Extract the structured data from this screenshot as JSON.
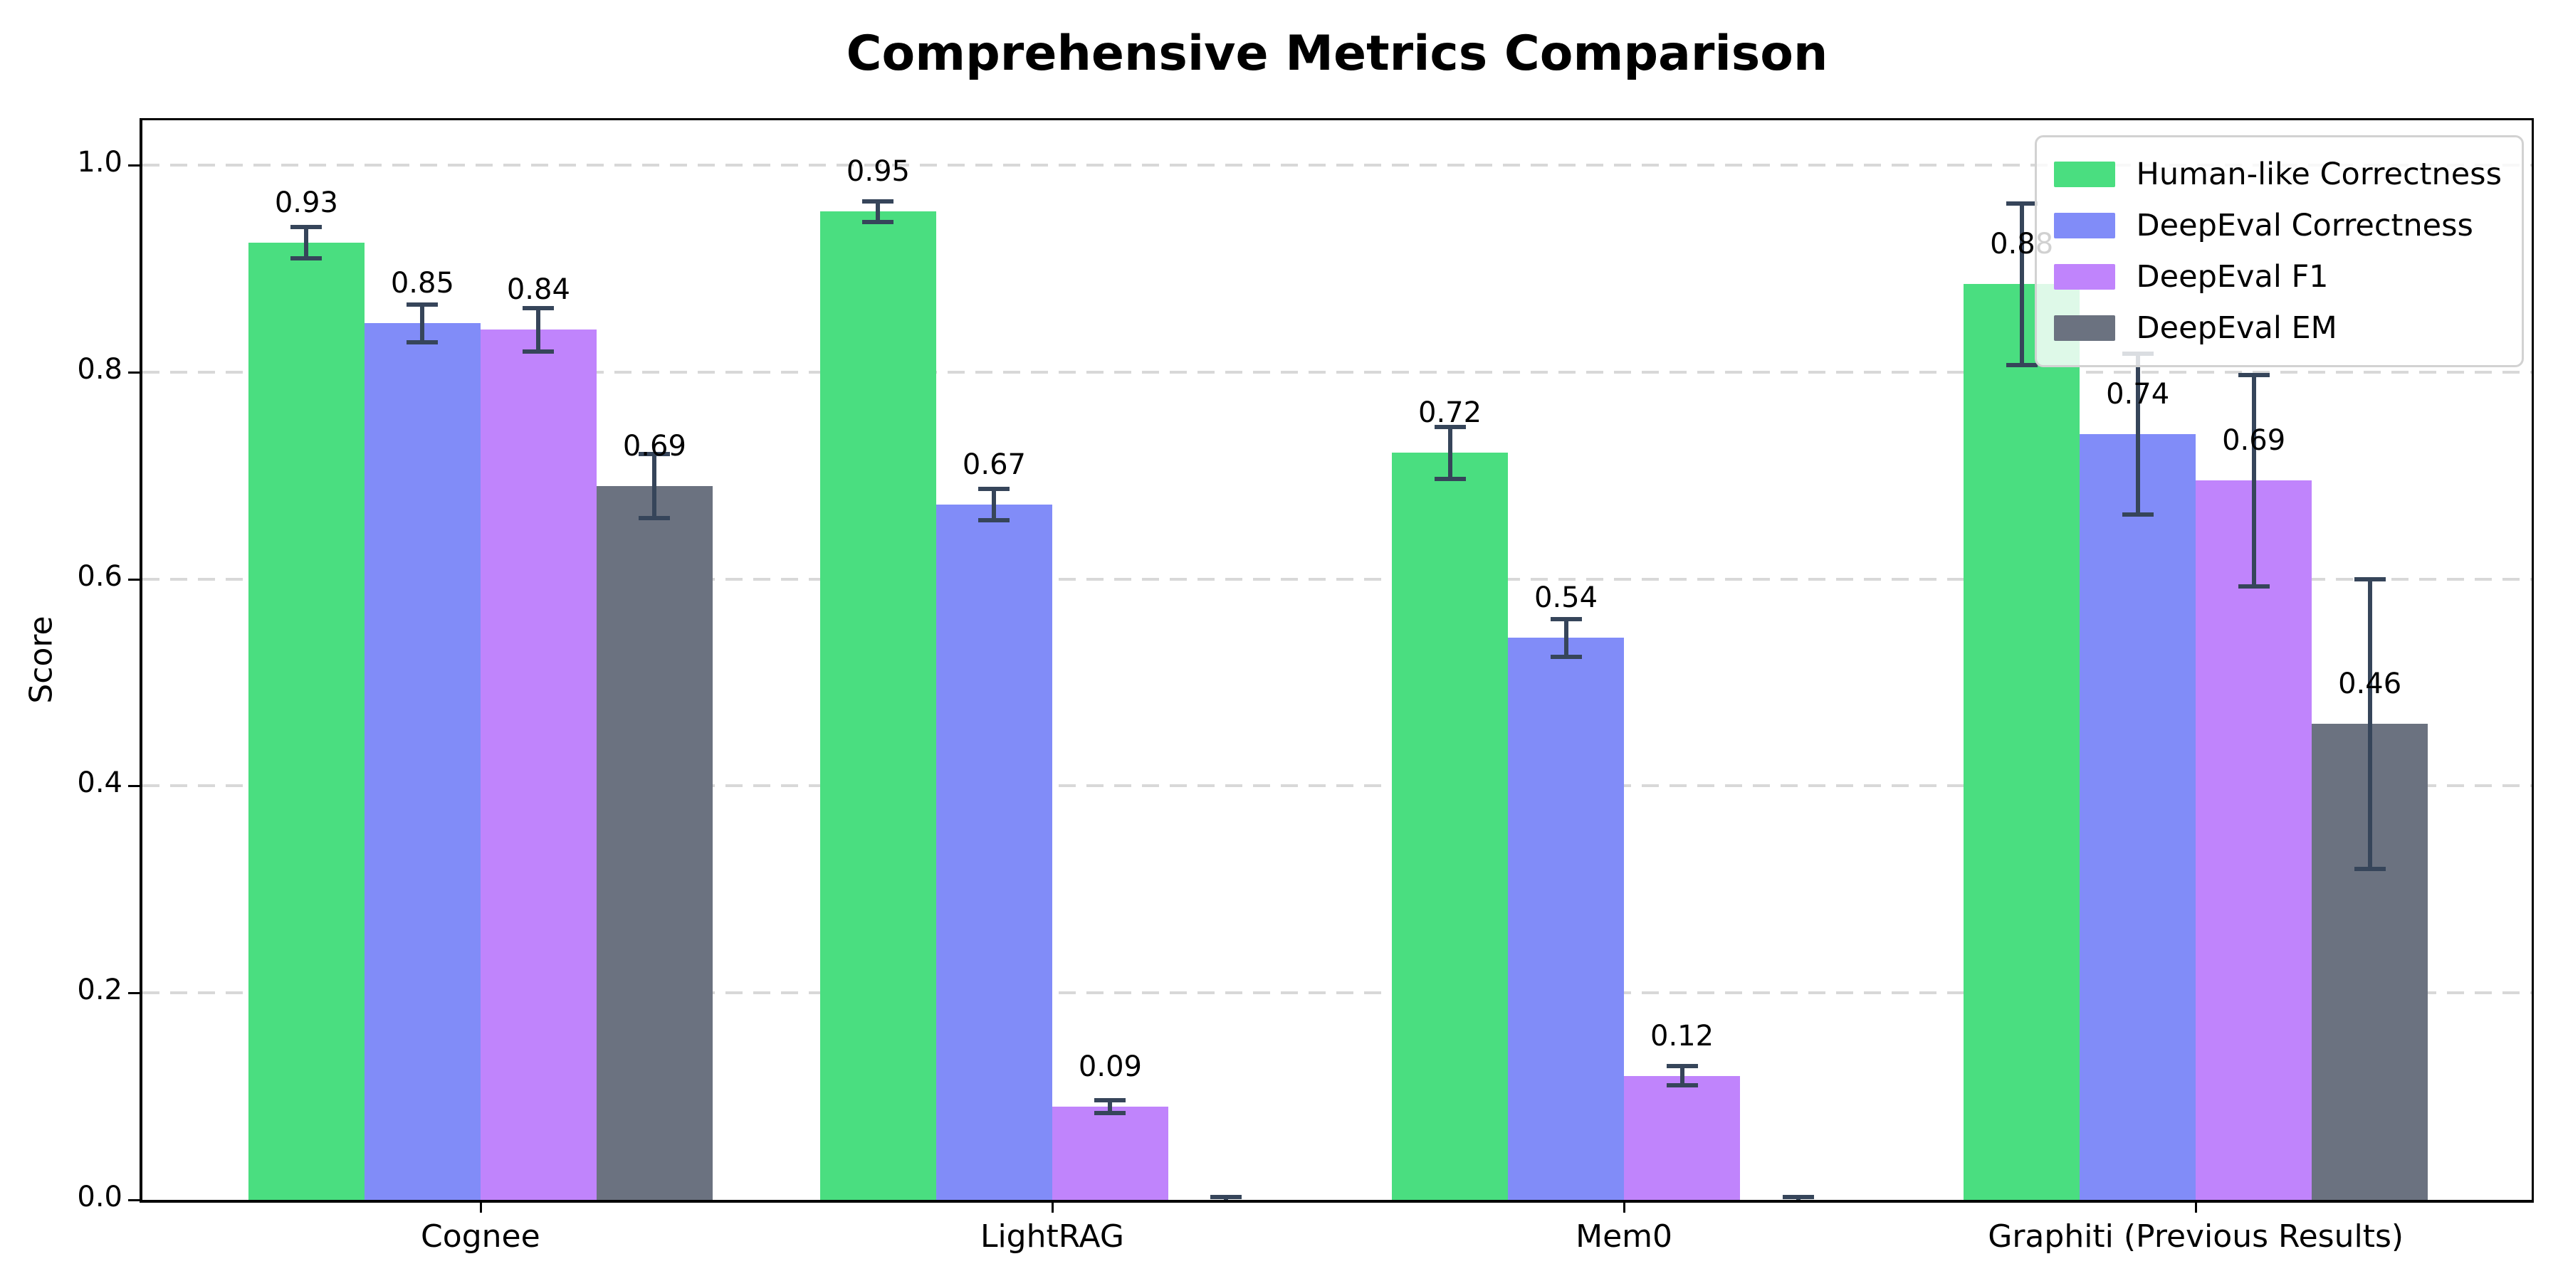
{
  "chart_data": {
    "type": "bar",
    "title": "Comprehensive Metrics Comparison",
    "ylabel": "Score",
    "categories": [
      "Cognee",
      "LightRAG",
      "Mem0",
      "Graphiti (Previous Results)"
    ],
    "series": [
      {
        "name": "Human-like Correctness",
        "color": "#4ade80",
        "values": [
          0.925,
          0.955,
          0.722,
          0.885
        ],
        "errors": [
          0.015,
          0.01,
          0.025,
          0.078
        ],
        "labels": [
          "0.93",
          "0.95",
          "0.72",
          "0.88"
        ]
      },
      {
        "name": "DeepEval Correctness",
        "color": "#818cf8",
        "values": [
          0.847,
          0.672,
          0.543,
          0.74
        ],
        "errors": [
          0.018,
          0.015,
          0.018,
          0.078
        ],
        "labels": [
          "0.85",
          "0.67",
          "0.54",
          "0.74"
        ]
      },
      {
        "name": "DeepEval F1",
        "color": "#c084fc",
        "values": [
          0.841,
          0.09,
          0.12,
          0.695
        ],
        "errors": [
          0.021,
          0.006,
          0.009,
          0.102
        ],
        "labels": [
          "0.84",
          "0.09",
          "0.12",
          "0.69"
        ]
      },
      {
        "name": "DeepEval EM",
        "color": "#6b7280",
        "values": [
          0.69,
          0.0,
          0.0,
          0.46
        ],
        "errors": [
          0.031,
          0.003,
          0.003,
          0.14
        ],
        "labels": [
          "0.69",
          "",
          "",
          "0.46"
        ]
      }
    ],
    "yticks": [
      "0.0",
      "0.2",
      "0.4",
      "0.6",
      "0.8",
      "1.0"
    ],
    "ylim": [
      0,
      1.0433
    ],
    "grid": "horizontal-dashed",
    "grid_color": "#d8d8d8",
    "legend_position": "upper right",
    "error_bar_color": "#36455a",
    "background": "#ffffff",
    "group_center_fracs": [
      0.1415,
      0.3808,
      0.6201,
      0.8594
    ]
  }
}
